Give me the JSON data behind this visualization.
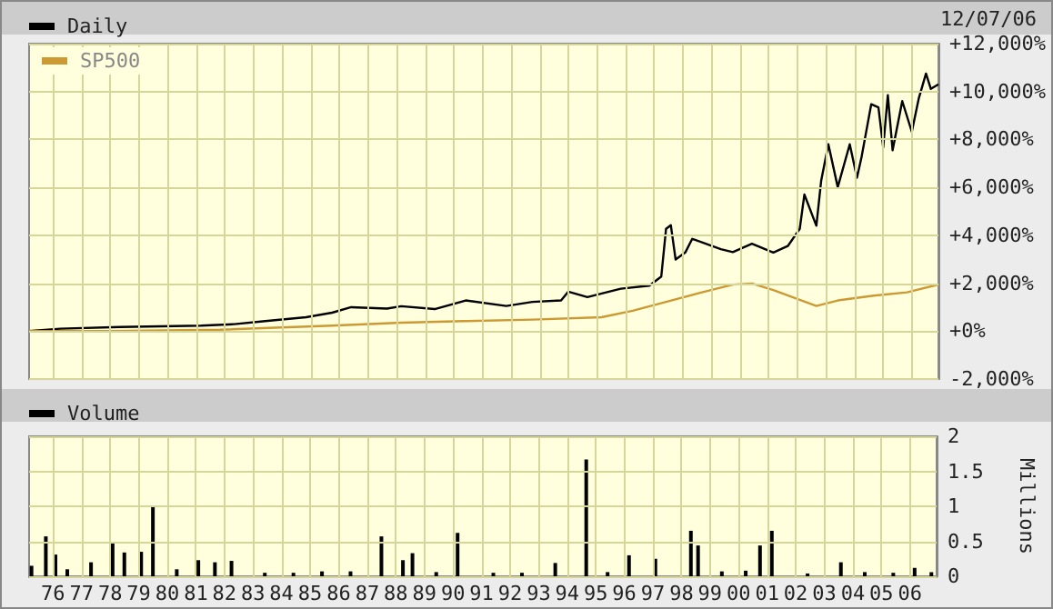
{
  "chart_data": [
    {
      "type": "line",
      "annotations": [
        "12/07/06"
      ],
      "legend": "top left",
      "grid": true,
      "marker": "none",
      "line_style": "solid",
      "tick_labels": "y",
      "xlim": [
        "1975-03",
        "2006-12-07"
      ],
      "xticks": [
        {
          "value": "1976",
          "label": null
        },
        {
          "value": "1977",
          "label": null
        },
        {
          "value": "1978",
          "label": null
        },
        {
          "value": "1979",
          "label": null
        },
        {
          "value": "1980",
          "label": null
        },
        {
          "value": "1981",
          "label": null
        },
        {
          "value": "1982",
          "label": null
        },
        {
          "value": "1983",
          "label": null
        },
        {
          "value": "1984",
          "label": null
        },
        {
          "value": "1985",
          "label": null
        },
        {
          "value": "1986",
          "label": null
        },
        {
          "value": "1987",
          "label": null
        },
        {
          "value": "1988",
          "label": null
        },
        {
          "value": "1989",
          "label": null
        },
        {
          "value": "1990",
          "label": null
        },
        {
          "value": "1991",
          "label": null
        },
        {
          "value": "1992",
          "label": null
        },
        {
          "value": "1993",
          "label": null
        },
        {
          "value": "1994",
          "label": null
        },
        {
          "value": "1995",
          "label": null
        },
        {
          "value": "1996",
          "label": null
        },
        {
          "value": "1997",
          "label": null
        },
        {
          "value": "1998",
          "label": null
        },
        {
          "value": "1999",
          "label": null
        },
        {
          "value": "2000",
          "label": null
        },
        {
          "value": "2001",
          "label": null
        },
        {
          "value": "2002",
          "label": null
        },
        {
          "value": "2003",
          "label": null
        },
        {
          "value": "2004",
          "label": null
        },
        {
          "value": "2005",
          "label": null
        },
        {
          "value": "2006",
          "label": null
        }
      ],
      "ylim": [
        -2000,
        12000
      ],
      "yticks": [
        {
          "value": -2000,
          "label": "-2,000%"
        },
        {
          "value": 0,
          "label": "+0%"
        },
        {
          "value": 2000,
          "label": "+2,000%"
        },
        {
          "value": 4000,
          "label": "+4,000%"
        },
        {
          "value": 6000,
          "label": "+6,000%"
        },
        {
          "value": 8000,
          "label": "+8,000%"
        },
        {
          "value": 10000,
          "label": "+10,000%"
        },
        {
          "value": 12000,
          "label": "+12,000%"
        }
      ],
      "series": [
        {
          "name": "Daily",
          "color": "#000000",
          "x": [
            "1975-03",
            "1976-04",
            "1978-05",
            "1981-03",
            "1982-05",
            "1983-06",
            "1984-11",
            "1985-10",
            "1986-06",
            "1987-09",
            "1988-03",
            "1989-05",
            "1990-06",
            "1991-11",
            "1992-10",
            "1993-10",
            "1994-01",
            "1994-09",
            "1995-11",
            "1996-11",
            "1997-04",
            "1997-06",
            "1997-08",
            "1997-10",
            "1998-02",
            "1998-05",
            "1999-05",
            "1999-10",
            "2000-06",
            "2001-03",
            "2001-09",
            "2002-02",
            "2002-04",
            "2002-09",
            "2002-11",
            "2003-02",
            "2003-06",
            "2003-11",
            "2004-02",
            "2004-04",
            "2004-08",
            "2004-11",
            "2005-01",
            "2005-03",
            "2005-05",
            "2005-09",
            "2006-01",
            "2006-04",
            "2006-07",
            "2006-09",
            "2006-12-07"
          ],
          "values": [
            0,
            100,
            170,
            230,
            290,
            420,
            580,
            770,
            1000,
            940,
            1040,
            920,
            1280,
            1050,
            1220,
            1280,
            1650,
            1420,
            1770,
            1900,
            2280,
            4270,
            4420,
            2990,
            3280,
            3850,
            3420,
            3300,
            3650,
            3280,
            3550,
            4270,
            5700,
            4400,
            6270,
            7800,
            6010,
            7800,
            6400,
            7290,
            9470,
            9340,
            7670,
            9850,
            7550,
            9600,
            8320,
            9730,
            10750,
            10110,
            10300
          ]
        },
        {
          "name": "SP500",
          "color": "#cc9933",
          "x": [
            "1975-03",
            "1978-01",
            "1981-11",
            "1985-10",
            "1988-03",
            "1990-06",
            "1992-10",
            "1995-03",
            "1996-04",
            "1997-06",
            "1998-09",
            "1999-10",
            "2000-06",
            "2001-03",
            "2002-09",
            "2003-06",
            "2004-09",
            "2005-11",
            "2006-12-07"
          ],
          "values": [
            0,
            0,
            60,
            230,
            350,
            420,
            480,
            580,
            850,
            1220,
            1620,
            1940,
            1990,
            1710,
            1050,
            1280,
            1480,
            1620,
            1940
          ]
        }
      ]
    },
    {
      "type": "bar",
      "ylabel": "Millions",
      "legend": "top left",
      "grid": true,
      "xlim": [
        "1975-03",
        "2006-12-07"
      ],
      "xticks": [
        {
          "value": "1976",
          "label": "76"
        },
        {
          "value": "1977",
          "label": "77"
        },
        {
          "value": "1978",
          "label": "78"
        },
        {
          "value": "1979",
          "label": "79"
        },
        {
          "value": "1980",
          "label": "80"
        },
        {
          "value": "1981",
          "label": "81"
        },
        {
          "value": "1982",
          "label": "82"
        },
        {
          "value": "1983",
          "label": "83"
        },
        {
          "value": "1984",
          "label": "84"
        },
        {
          "value": "1985",
          "label": "85"
        },
        {
          "value": "1986",
          "label": "86"
        },
        {
          "value": "1987",
          "label": "87"
        },
        {
          "value": "1988",
          "label": "88"
        },
        {
          "value": "1989",
          "label": "89"
        },
        {
          "value": "1990",
          "label": "90"
        },
        {
          "value": "1991",
          "label": "91"
        },
        {
          "value": "1992",
          "label": "92"
        },
        {
          "value": "1993",
          "label": "93"
        },
        {
          "value": "1994",
          "label": "94"
        },
        {
          "value": "1995",
          "label": "95"
        },
        {
          "value": "1996",
          "label": "96"
        },
        {
          "value": "1997",
          "label": "97"
        },
        {
          "value": "1998",
          "label": "98"
        },
        {
          "value": "1999",
          "label": "99"
        },
        {
          "value": "2000",
          "label": "00"
        },
        {
          "value": "2001",
          "label": "01"
        },
        {
          "value": "2002",
          "label": "02"
        },
        {
          "value": "2003",
          "label": "03"
        },
        {
          "value": "2004",
          "label": "04"
        },
        {
          "value": "2005",
          "label": "05"
        },
        {
          "value": "2006",
          "label": "06"
        }
      ],
      "ylim": [
        0,
        2
      ],
      "yticks": [
        0,
        0.5,
        1,
        1.5,
        2
      ],
      "series": [
        {
          "name": "Volume",
          "color": "#000000",
          "x": [
            "1975-04",
            "1975-10",
            "1976-02",
            "1976-07",
            "1977-05",
            "1978-02",
            "1978-07",
            "1979-02",
            "1979-07",
            "1980-05",
            "1981-02",
            "1981-09",
            "1982-04",
            "1983-06",
            "1984-06",
            "1985-06",
            "1986-06",
            "1987-07",
            "1988-04",
            "1988-08",
            "1989-06",
            "1990-03",
            "1991-06",
            "1992-06",
            "1993-08",
            "1994-09",
            "1995-06",
            "1996-03",
            "1997-02",
            "1998-05",
            "1998-08",
            "1999-06",
            "2000-04",
            "2000-10",
            "2001-03",
            "2002-06",
            "2003-08",
            "2004-06",
            "2005-06",
            "2006-03",
            "2006-10"
          ],
          "values": [
            0.15,
            0.57,
            0.31,
            0.1,
            0.2,
            0.47,
            0.34,
            0.35,
            1.01,
            0.1,
            0.23,
            0.2,
            0.22,
            0.05,
            0.05,
            0.07,
            0.07,
            0.57,
            0.23,
            0.33,
            0.06,
            0.62,
            0.05,
            0.05,
            0.19,
            1.67,
            0.06,
            0.3,
            0.25,
            0.65,
            0.44,
            0.07,
            0.08,
            0.44,
            0.65,
            0.04,
            0.2,
            0.06,
            0.05,
            0.12,
            0.06
          ]
        }
      ]
    }
  ]
}
